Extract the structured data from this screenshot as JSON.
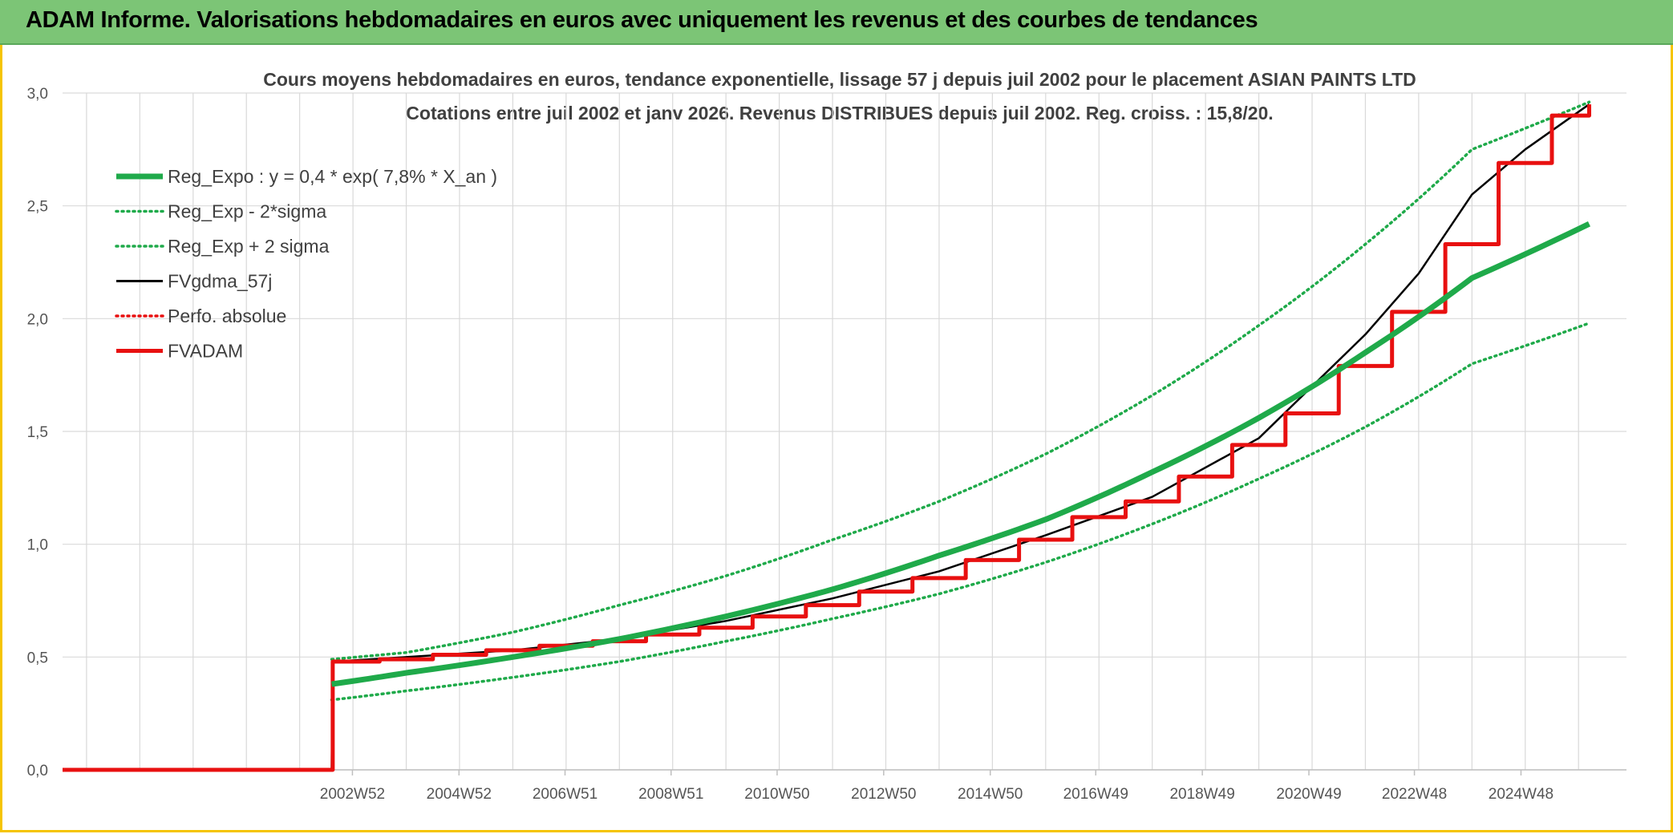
{
  "banner": {
    "title": "ADAM Informe. Valorisations hebdomadaires en euros avec uniquement les revenus et des courbes de tendances"
  },
  "colors": {
    "banner_bg": "#7cc576",
    "frame": "#f5c400",
    "reg_expo": "#1faa4a",
    "fvgdma": "#000000",
    "perfo": "#e81010",
    "fvadam": "#e81010",
    "grid": "#d9d9d9"
  },
  "chart_data": {
    "type": "line",
    "title": "Cours moyens hebdomadaires en euros, tendance exponentielle, lissage 57 j depuis juil 2002 pour le placement ASIAN PAINTS LTD",
    "subtitle": "Cotations entre juil 2002 et janv 2026. Revenus DISTRIBUES depuis juil 2002. Reg. croiss. : 15,8/20.",
    "xlabel": "",
    "ylabel": "",
    "ylim": [
      0,
      3
    ],
    "yticks": [
      "0,0",
      "0,5",
      "1,0",
      "1,5",
      "2,0",
      "2,5",
      "3,0"
    ],
    "xlim": [
      1997.55,
      2026.9
    ],
    "xticks": [
      {
        "label": "2002W52",
        "x": 2002.99
      },
      {
        "label": "2004W52",
        "x": 2004.99
      },
      {
        "label": "2006W51",
        "x": 2006.98
      },
      {
        "label": "2008W51",
        "x": 2008.97
      },
      {
        "label": "2010W50",
        "x": 2010.96
      },
      {
        "label": "2012W50",
        "x": 2012.96
      },
      {
        "label": "2014W50",
        "x": 2014.96
      },
      {
        "label": "2016W49",
        "x": 2016.94
      },
      {
        "label": "2018W49",
        "x": 2018.94
      },
      {
        "label": "2020W49",
        "x": 2020.94
      },
      {
        "label": "2022W48",
        "x": 2022.92
      },
      {
        "label": "2024W48",
        "x": 2024.92
      }
    ],
    "grid": true,
    "legend_placement": "top-left",
    "series": [
      {
        "name": "Reg_Expo : y = 0,4 * exp( 7,8% *  X_an )",
        "style": "solid-thick",
        "color": "#1faa4a",
        "x": [
          2002.6,
          2004,
          2006,
          2008,
          2010,
          2012,
          2014,
          2016,
          2018,
          2020,
          2022,
          2024,
          2026.2
        ],
        "y": [
          0.38,
          0.43,
          0.5,
          0.58,
          0.68,
          0.8,
          0.95,
          1.11,
          1.32,
          1.56,
          1.85,
          2.18,
          2.42
        ]
      },
      {
        "name": "Reg_Exp - 2*sigma",
        "style": "dotted",
        "color": "#1faa4a",
        "x": [
          2002.6,
          2004,
          2006,
          2008,
          2010,
          2012,
          2014,
          2016,
          2018,
          2020,
          2022,
          2024,
          2026.2
        ],
        "y": [
          0.31,
          0.35,
          0.41,
          0.48,
          0.57,
          0.67,
          0.78,
          0.92,
          1.09,
          1.29,
          1.52,
          1.8,
          1.98
        ]
      },
      {
        "name": "Reg_Exp + 2 sigma",
        "style": "dotted",
        "color": "#1faa4a",
        "x": [
          2002.6,
          2004,
          2006,
          2008,
          2010,
          2012,
          2014,
          2016,
          2018,
          2020,
          2022,
          2024,
          2026.2
        ],
        "y": [
          0.49,
          0.52,
          0.61,
          0.73,
          0.86,
          1.02,
          1.19,
          1.4,
          1.66,
          1.97,
          2.33,
          2.75,
          2.96
        ]
      },
      {
        "name": "FVgdma_57j",
        "style": "solid",
        "color": "#000000",
        "x": [
          1997.55,
          2002.6,
          2002.62,
          2004,
          2006,
          2008,
          2010,
          2012,
          2014,
          2016,
          2018,
          2020,
          2021,
          2022,
          2023,
          2024,
          2025,
          2026.2
        ],
        "y": [
          0,
          0,
          0.48,
          0.5,
          0.53,
          0.58,
          0.66,
          0.76,
          0.88,
          1.04,
          1.21,
          1.47,
          1.7,
          1.93,
          2.2,
          2.55,
          2.75,
          2.95
        ]
      },
      {
        "name": "Perfo. absolue",
        "style": "dotted",
        "color": "#e81010",
        "x": [],
        "y": []
      },
      {
        "name": "FVADAM",
        "style": "step-thick",
        "color": "#e81010",
        "x": [
          1997.55,
          2002.6,
          2002.62,
          2003.5,
          2004.5,
          2005.5,
          2006.5,
          2007.5,
          2008.5,
          2009.5,
          2010.5,
          2011.5,
          2012.5,
          2013.5,
          2014.5,
          2015.5,
          2016.5,
          2017.5,
          2018.5,
          2019.5,
          2020.5,
          2021.5,
          2022.5,
          2023.5,
          2024.5,
          2025.5,
          2026.2
        ],
        "y": [
          0,
          0,
          0.48,
          0.49,
          0.51,
          0.53,
          0.55,
          0.57,
          0.6,
          0.63,
          0.68,
          0.73,
          0.79,
          0.85,
          0.93,
          1.02,
          1.12,
          1.19,
          1.3,
          1.44,
          1.58,
          1.79,
          2.03,
          2.33,
          2.69,
          2.9,
          2.95
        ]
      }
    ]
  }
}
